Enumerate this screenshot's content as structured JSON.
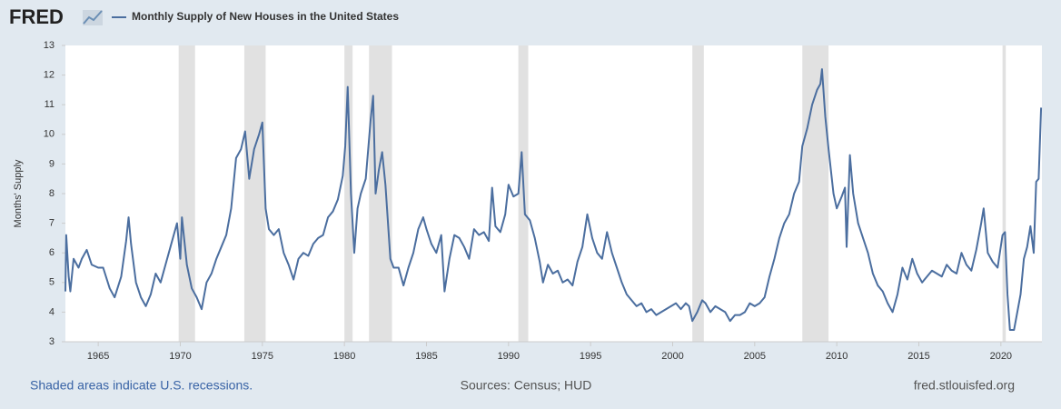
{
  "chart_data": {
    "type": "line",
    "logo": "FRED",
    "y_label": "Months' Supply",
    "note": "Shaded areas indicate U.S. recessions.",
    "source": "Sources: Census; HUD",
    "site": "fred.stlouisfed.org",
    "xlim": [
      1963,
      2022.5
    ],
    "xticks": [
      1965,
      1970,
      1975,
      1980,
      1985,
      1990,
      1995,
      2000,
      2005,
      2010,
      2015,
      2020
    ],
    "ylim": [
      3,
      13
    ],
    "yticks": [
      3,
      4,
      5,
      6,
      7,
      8,
      9,
      10,
      11,
      12,
      13
    ],
    "recessions": {
      "color": "#e1e1e1",
      "starts": [
        1969.9,
        1973.9,
        1980.0,
        1981.5,
        1990.6,
        2001.2,
        2007.9,
        2020.1
      ],
      "ends": [
        1970.9,
        1975.2,
        1980.5,
        1982.9,
        1991.2,
        2001.9,
        2009.5,
        2020.3
      ]
    },
    "series": [
      {
        "name": "Monthly Supply of New Houses in the United States",
        "color": "#4b6e9f",
        "x": [
          1963.0,
          1963.05,
          1963.2,
          1963.3,
          1963.5,
          1963.8,
          1964.0,
          1964.3,
          1964.6,
          1965.0,
          1965.3,
          1965.7,
          1966.0,
          1966.4,
          1966.7,
          1966.85,
          1967.0,
          1967.3,
          1967.6,
          1967.9,
          1968.2,
          1968.5,
          1968.8,
          1969.1,
          1969.4,
          1969.8,
          1970.0,
          1970.1,
          1970.4,
          1970.7,
          1971.0,
          1971.3,
          1971.6,
          1971.9,
          1972.2,
          1972.5,
          1972.8,
          1973.1,
          1973.4,
          1973.7,
          1973.95,
          1974.2,
          1974.5,
          1974.8,
          1975.0,
          1975.2,
          1975.4,
          1975.7,
          1976.0,
          1976.3,
          1976.6,
          1976.9,
          1977.2,
          1977.5,
          1977.8,
          1978.1,
          1978.4,
          1978.7,
          1979.0,
          1979.3,
          1979.6,
          1979.9,
          1980.05,
          1980.2,
          1980.4,
          1980.6,
          1980.8,
          1981.0,
          1981.3,
          1981.6,
          1981.75,
          1981.9,
          1982.1,
          1982.3,
          1982.5,
          1982.8,
          1983.0,
          1983.3,
          1983.6,
          1983.9,
          1984.2,
          1984.5,
          1984.8,
          1985.0,
          1985.3,
          1985.6,
          1985.9,
          1986.1,
          1986.4,
          1986.7,
          1987.0,
          1987.3,
          1987.6,
          1987.9,
          1988.2,
          1988.5,
          1988.8,
          1989.0,
          1989.2,
          1989.5,
          1989.8,
          1990.0,
          1990.3,
          1990.6,
          1990.8,
          1991.0,
          1991.3,
          1991.6,
          1991.9,
          1992.1,
          1992.4,
          1992.7,
          1993.0,
          1993.3,
          1993.6,
          1993.9,
          1994.2,
          1994.5,
          1994.8,
          1995.1,
          1995.4,
          1995.7,
          1996.0,
          1996.3,
          1996.6,
          1996.9,
          1997.2,
          1997.5,
          1997.8,
          1998.1,
          1998.4,
          1998.7,
          1999.0,
          1999.3,
          1999.6,
          1999.9,
          2000.2,
          2000.5,
          2000.8,
          2001.0,
          2001.2,
          2001.5,
          2001.8,
          2002.0,
          2002.3,
          2002.6,
          2002.9,
          2003.2,
          2003.5,
          2003.8,
          2004.1,
          2004.4,
          2004.7,
          2005.0,
          2005.3,
          2005.6,
          2005.9,
          2006.2,
          2006.5,
          2006.8,
          2007.1,
          2007.4,
          2007.7,
          2007.9,
          2008.2,
          2008.5,
          2008.8,
          2009.0,
          2009.1,
          2009.3,
          2009.5,
          2009.8,
          2010.0,
          2010.3,
          2010.5,
          2010.6,
          2010.8,
          2011.0,
          2011.3,
          2011.6,
          2011.9,
          2012.2,
          2012.5,
          2012.8,
          2013.1,
          2013.4,
          2013.7,
          2014.0,
          2014.3,
          2014.6,
          2014.9,
          2015.2,
          2015.5,
          2015.8,
          2016.1,
          2016.4,
          2016.7,
          2017.0,
          2017.3,
          2017.6,
          2017.9,
          2018.2,
          2018.5,
          2018.8,
          2018.95,
          2019.2,
          2019.5,
          2019.8,
          2020.1,
          2020.25,
          2020.4,
          2020.55,
          2020.8,
          2021.0,
          2021.2,
          2021.4,
          2021.6,
          2021.8,
          2022.0,
          2022.15,
          2022.3,
          2022.45
        ],
        "values": [
          4.7,
          6.6,
          5.2,
          4.7,
          5.8,
          5.5,
          5.8,
          6.1,
          5.6,
          5.5,
          5.5,
          4.8,
          4.5,
          5.2,
          6.4,
          7.2,
          6.3,
          5.0,
          4.5,
          4.2,
          4.6,
          5.3,
          5.0,
          5.6,
          6.2,
          7.0,
          5.8,
          7.2,
          5.6,
          4.8,
          4.5,
          4.1,
          5.0,
          5.3,
          5.8,
          6.2,
          6.6,
          7.5,
          9.2,
          9.5,
          10.1,
          8.5,
          9.5,
          10.0,
          10.4,
          7.5,
          6.8,
          6.6,
          6.8,
          6.0,
          5.6,
          5.1,
          5.8,
          6.0,
          5.9,
          6.3,
          6.5,
          6.6,
          7.2,
          7.4,
          7.8,
          8.6,
          9.6,
          11.6,
          8.0,
          6.0,
          7.5,
          8.0,
          8.5,
          10.5,
          11.3,
          8.0,
          8.8,
          9.4,
          8.3,
          5.8,
          5.5,
          5.5,
          4.9,
          5.5,
          6.0,
          6.8,
          7.2,
          6.8,
          6.3,
          6.0,
          6.6,
          4.7,
          5.8,
          6.6,
          6.5,
          6.2,
          5.8,
          6.8,
          6.6,
          6.7,
          6.4,
          8.2,
          6.9,
          6.7,
          7.3,
          8.3,
          7.9,
          8.0,
          9.4,
          7.3,
          7.1,
          6.5,
          5.7,
          5.0,
          5.6,
          5.3,
          5.4,
          5.0,
          5.1,
          4.9,
          5.7,
          6.2,
          7.3,
          6.5,
          6.0,
          5.8,
          6.7,
          6.0,
          5.5,
          5.0,
          4.6,
          4.4,
          4.2,
          4.3,
          4.0,
          4.1,
          3.9,
          4.0,
          4.1,
          4.2,
          4.3,
          4.1,
          4.3,
          4.2,
          3.7,
          4.0,
          4.4,
          4.3,
          4.0,
          4.2,
          4.1,
          4.0,
          3.7,
          3.9,
          3.9,
          4.0,
          4.3,
          4.2,
          4.3,
          4.5,
          5.2,
          5.8,
          6.5,
          7.0,
          7.3,
          8.0,
          8.4,
          9.6,
          10.2,
          11.0,
          11.5,
          11.7,
          12.2,
          10.6,
          9.5,
          8.0,
          7.5,
          7.9,
          8.2,
          6.2,
          9.3,
          8.0,
          7.0,
          6.5,
          6.0,
          5.3,
          4.9,
          4.7,
          4.3,
          4.0,
          4.6,
          5.5,
          5.1,
          5.8,
          5.3,
          5.0,
          5.2,
          5.4,
          5.3,
          5.2,
          5.6,
          5.4,
          5.3,
          6.0,
          5.6,
          5.4,
          6.1,
          7.0,
          7.5,
          6.0,
          5.7,
          5.5,
          6.6,
          6.7,
          4.6,
          3.4,
          3.4,
          4.0,
          4.6,
          5.8,
          6.2,
          6.9,
          6.0,
          8.4,
          8.5,
          10.9
        ]
      }
    ]
  }
}
